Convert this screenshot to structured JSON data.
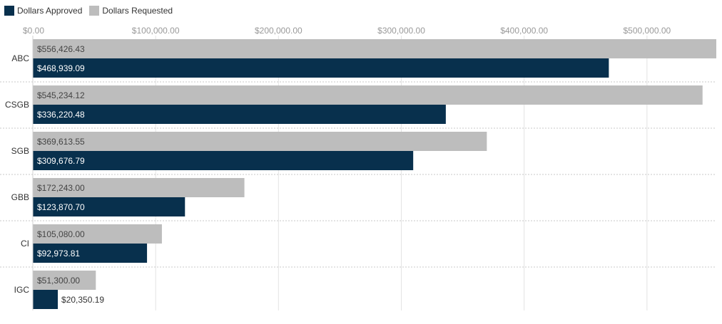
{
  "chart_data": {
    "type": "bar",
    "orientation": "horizontal",
    "title": "",
    "xlabel": "",
    "ylabel": "",
    "categories": [
      "ABC",
      "CSGB",
      "SGB",
      "GBB",
      "CI",
      "IGC"
    ],
    "series": [
      {
        "name": "Dollars Requested",
        "color": "#bdbdbd",
        "values": [
          556426.43,
          545234.12,
          369613.55,
          172243.0,
          105080.0,
          51300.0
        ],
        "labels": [
          "$556,426.43",
          "$545,234.12",
          "$369,613.55",
          "$172,243.00",
          "$105,080.00",
          "$51,300.00"
        ]
      },
      {
        "name": "Dollars Approved",
        "color": "#08304d",
        "values": [
          468939.09,
          336220.48,
          309676.79,
          123870.7,
          92973.81,
          20350.19
        ],
        "labels": [
          "$468,939.09",
          "$336,220.48",
          "$309,676.79",
          "$123,870.70",
          "$92,973.81",
          "$20,350.19"
        ]
      }
    ],
    "xlim": [
      0,
      556426.43
    ],
    "xticks": [
      0,
      100000,
      200000,
      300000,
      400000,
      500000
    ],
    "xtick_labels": [
      "$0.00",
      "$100,000.00",
      "$200,000.00",
      "$300,000.00",
      "$400,000.00",
      "$500,000.00"
    ],
    "legend": {
      "position": "top-left",
      "entries": [
        {
          "name": "Dollars Approved",
          "color": "#08304d"
        },
        {
          "name": "Dollars Requested",
          "color": "#bdbdbd"
        }
      ]
    },
    "grid": true
  }
}
